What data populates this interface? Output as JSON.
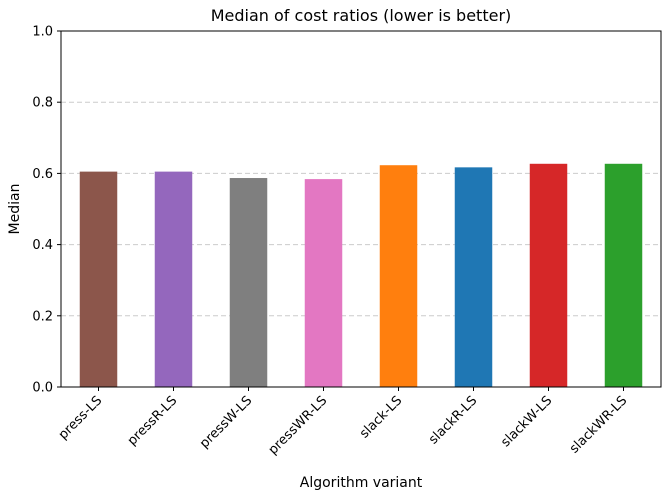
{
  "chart_data": {
    "type": "bar",
    "title": "Median of cost ratios (lower is better)",
    "xlabel": "Algorithm variant",
    "ylabel": "Median",
    "categories": [
      "press-LS",
      "pressR-LS",
      "pressW-LS",
      "pressWR-LS",
      "slack-LS",
      "slackR-LS",
      "slackW-LS",
      "slackWR-LS"
    ],
    "values": [
      0.605,
      0.605,
      0.587,
      0.584,
      0.623,
      0.617,
      0.627,
      0.627
    ],
    "colors": [
      "#8c564b",
      "#9467bd",
      "#7f7f7f",
      "#e377c2",
      "#ff7f0e",
      "#1f77b4",
      "#d62728",
      "#2ca02c"
    ],
    "ylim": [
      0.0,
      1.0
    ],
    "yticks": [
      "0.0",
      "0.2",
      "0.4",
      "0.6",
      "0.8",
      "1.0"
    ],
    "grid": "y-dashed",
    "legend": "none"
  }
}
